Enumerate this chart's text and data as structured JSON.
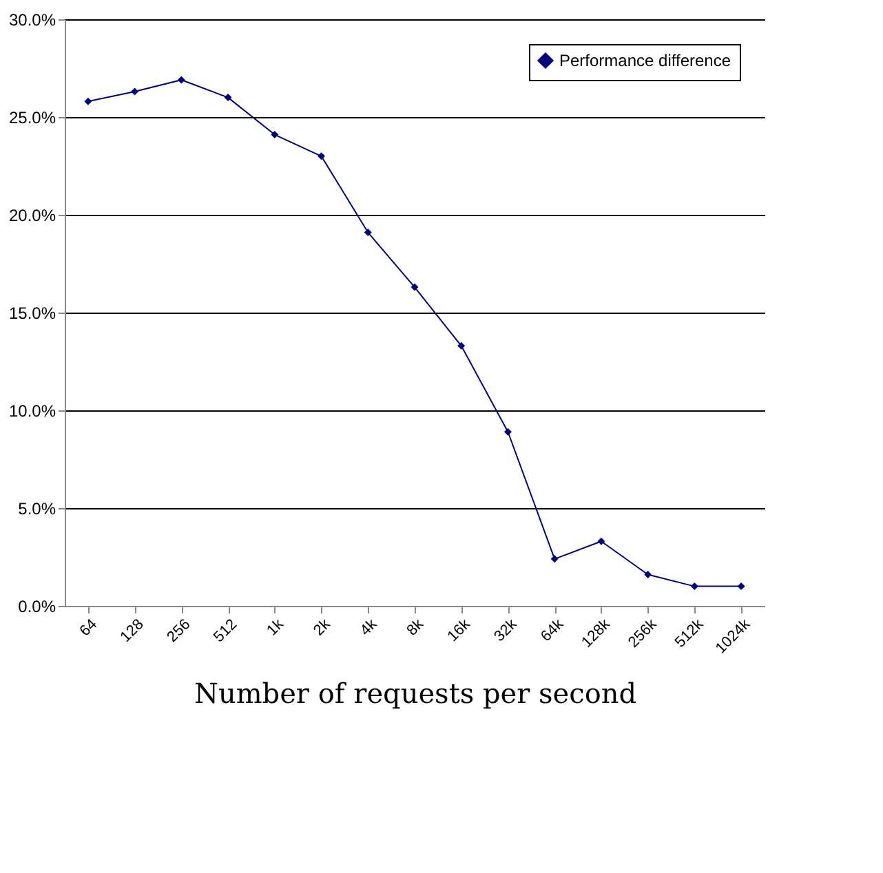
{
  "chart_data": {
    "type": "line",
    "xlabel": "Number of requests per second",
    "categories": [
      "64",
      "128",
      "256",
      "512",
      "1k",
      "2k",
      "4k",
      "8k",
      "16k",
      "32k",
      "64k",
      "128k",
      "256k",
      "512k",
      "1024k"
    ],
    "series": [
      {
        "name": "Performance difference",
        "color": "#000080",
        "values": [
          25.8,
          26.3,
          26.9,
          26.0,
          24.1,
          23.0,
          19.1,
          16.3,
          13.3,
          8.9,
          2.4,
          3.3,
          1.6,
          1.0,
          1.0
        ]
      }
    ],
    "ylim": [
      0,
      30
    ],
    "yticks": [
      {
        "value": 0,
        "label": "0.0%"
      },
      {
        "value": 5,
        "label": "5.0%"
      },
      {
        "value": 10,
        "label": "10.0%"
      },
      {
        "value": 15,
        "label": "15.0%"
      },
      {
        "value": 20,
        "label": "20.0%"
      },
      {
        "value": 25,
        "label": "25.0%"
      },
      {
        "value": 30,
        "label": "30.0%"
      }
    ],
    "grid": "y",
    "legend": "top right",
    "marker": "diamond",
    "line_style": "solid"
  }
}
